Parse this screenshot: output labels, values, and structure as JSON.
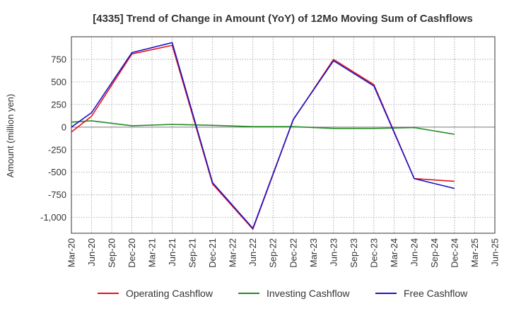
{
  "chart_data": {
    "type": "line",
    "title": "[4335]  Trend of Change in Amount (YoY) of 12Mo Moving Sum of Cashflows",
    "xlabel": "",
    "ylabel": "Amount (million yen)",
    "ylim": [
      -1175,
      1000
    ],
    "yticks": [
      750,
      500,
      250,
      0,
      -250,
      -500,
      -750,
      -1000
    ],
    "ytick_labels": [
      "750",
      "500",
      "250",
      "0",
      "-250",
      "-500",
      "-750",
      "-1,000"
    ],
    "categories": [
      "Mar-20",
      "Jun-20",
      "Sep-20",
      "Dec-20",
      "Mar-21",
      "Jun-21",
      "Sep-21",
      "Dec-21",
      "Mar-22",
      "Jun-22",
      "Sep-22",
      "Dec-22",
      "Mar-23",
      "Jun-23",
      "Sep-23",
      "Dec-23",
      "Mar-24",
      "Jun-24",
      "Sep-24",
      "Dec-24",
      "Mar-25",
      "Jun-25"
    ],
    "grid": true,
    "legend_position": "bottom",
    "series": [
      {
        "name": "Operating Cashflow",
        "color": "#e8111a",
        "values": [
          -55,
          120,
          null,
          810,
          null,
          905,
          null,
          -630,
          null,
          -1130,
          null,
          80,
          null,
          750,
          null,
          470,
          null,
          -570,
          null,
          -600,
          null,
          null
        ]
      },
      {
        "name": "Investing Cashflow",
        "color": "#228b22",
        "values": [
          55,
          70,
          null,
          15,
          null,
          30,
          null,
          20,
          null,
          5,
          null,
          5,
          null,
          -15,
          null,
          -15,
          null,
          -5,
          null,
          -80,
          null,
          null
        ]
      },
      {
        "name": "Free Cashflow",
        "color": "#1a14c8",
        "values": [
          0,
          160,
          null,
          825,
          null,
          935,
          null,
          -615,
          null,
          -1120,
          null,
          85,
          null,
          735,
          null,
          455,
          null,
          -570,
          null,
          -680,
          null,
          null
        ]
      }
    ]
  }
}
